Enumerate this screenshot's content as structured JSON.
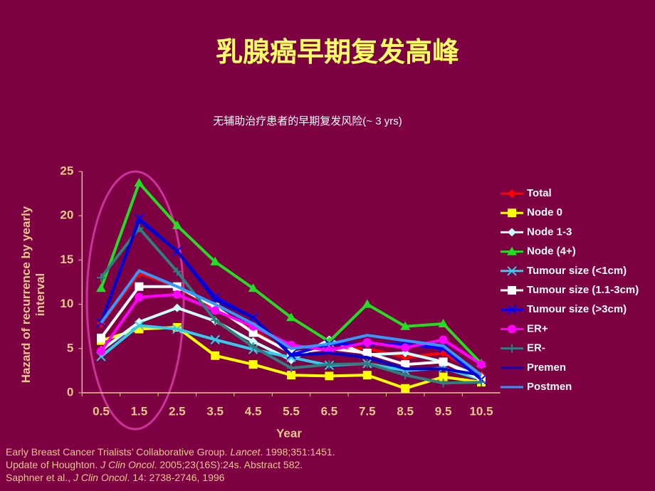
{
  "title": "乳腺癌早期复发高峰",
  "references": [
    [
      "Early Breast Cancer Trialists’ Collaborative Group. ",
      "Lancet",
      ". 1998;351:1451."
    ],
    [
      "Update of Houghton. ",
      "J Clin Oncol",
      ". 2005;23(16S):24s. Abstract 582."
    ],
    [
      "Saphner et al., ",
      "J Clin Oncol",
      ". 14: 2738-2746, 1996"
    ]
  ],
  "chart_data": {
    "type": "line",
    "subtitle": "无辅助治疗患者的早期复发风险(~ 3 yrs)",
    "x_label": "Year",
    "y_label": "Hazard of recurrence by yearly interval",
    "categories": [
      "0.5",
      "1.5",
      "2.5",
      "3.5",
      "4.5",
      "5.5",
      "6.5",
      "7.5",
      "8.5",
      "9.5",
      "10.5"
    ],
    "ylim": [
      0,
      25
    ],
    "yticks": [
      0,
      5,
      10,
      15,
      20,
      25
    ],
    "legend": "right",
    "series": [
      {
        "name": "Total",
        "color": "#ff0000",
        "marker": "diamond",
        "values": [
          7.8,
          13.5,
          12,
          9.5,
          7,
          4.5,
          5,
          5,
          4,
          4.5,
          2
        ]
      },
      {
        "name": "Node 0",
        "color": "#ffff00",
        "marker": "square",
        "values": [
          5.9,
          7.2,
          7.4,
          4.2,
          3.2,
          2.0,
          1.9,
          2.0,
          0.5,
          1.8,
          1.2
        ]
      },
      {
        "name": "Node 1-3",
        "color": "#ccffff",
        "marker": "diamond",
        "values": [
          4.8,
          8.0,
          9.6,
          8.1,
          5.8,
          3.7,
          6.0,
          4.3,
          4.5,
          3.5,
          1.8
        ]
      },
      {
        "name": "Node (4+)",
        "color": "#22dd22",
        "marker": "triangle",
        "values": [
          11.8,
          23.7,
          18.9,
          14.8,
          11.8,
          8.5,
          5.8,
          10.0,
          7.5,
          7.8,
          3.3
        ]
      },
      {
        "name": "Tumour size (<1cm)",
        "color": "#33ccee",
        "marker": "x",
        "values": [
          4.1,
          7.6,
          7.2,
          6.0,
          4.9,
          4.0,
          3.1,
          3.3,
          2.5,
          2.8,
          1.5
        ]
      },
      {
        "name": "Tumour size (1.1-3cm)",
        "color": "#ffffff",
        "marker": "square",
        "values": [
          6.2,
          12.0,
          12.0,
          9.7,
          6.8,
          4.5,
          5.0,
          4.5,
          3.2,
          3.5,
          1.5
        ]
      },
      {
        "name": "Tumour size (>3cm)",
        "color": "#0000ff",
        "marker": "x",
        "values": [
          7.9,
          19.7,
          16.0,
          10.8,
          8.5,
          4.3,
          5.5,
          5.5,
          5.5,
          5.0,
          1.5
        ]
      },
      {
        "name": "ER+",
        "color": "#ff00ff",
        "marker": "circle",
        "values": [
          4.7,
          10.8,
          11.1,
          9.3,
          7.5,
          5.4,
          4.8,
          5.7,
          5.1,
          6.0,
          3.2
        ]
      },
      {
        "name": "ER-",
        "color": "#2f7f7f",
        "marker": "plus",
        "values": [
          13.0,
          18.6,
          13.7,
          8.2,
          5.2,
          2.8,
          3.2,
          3.3,
          2.0,
          1.1,
          1.2
        ]
      },
      {
        "name": "Premen",
        "color": "#0000cc",
        "marker": "none",
        "values": [
          8.0,
          19.5,
          16.0,
          10.5,
          8.5,
          4.2,
          4.5,
          4.0,
          2.7,
          2.7,
          2.0
        ]
      },
      {
        "name": "Postmen",
        "color": "#3399ff",
        "marker": "none",
        "values": [
          7.9,
          13.8,
          12.0,
          10.0,
          7.8,
          5.0,
          5.5,
          6.5,
          5.9,
          5.3,
          2.0
        ]
      }
    ]
  }
}
